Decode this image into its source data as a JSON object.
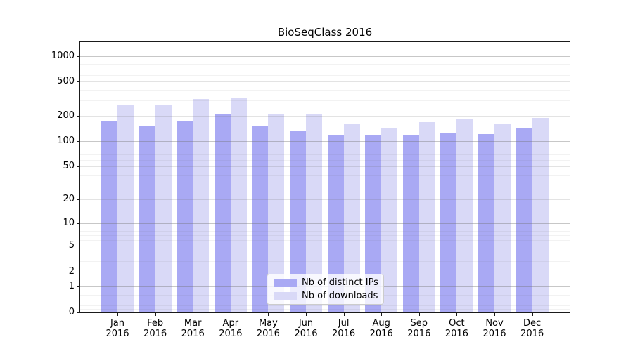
{
  "title": "BioSeqClass 2016",
  "legend": {
    "items": [
      {
        "label": "Nb of distinct IPs",
        "series_key": "ips"
      },
      {
        "label": "Nb of downloads",
        "series_key": "downloads"
      }
    ]
  },
  "colors": {
    "bar_ips": "#a9a9f4",
    "bar_downloads": "#d9d9f7",
    "axis_frame": "#1a1a1a",
    "grid_strong": "rgba(115,115,115,0.40)",
    "grid_medium": "rgba(115,115,115,0.20)",
    "grid_faint": "rgba(115,115,115,0.09)",
    "legend_bg": "rgba(255,255,255,0.8)",
    "legend_border": "#cccccc",
    "text": "#000000"
  },
  "y_axis": {
    "tick_values": [
      1000,
      500,
      200,
      100,
      50,
      20,
      10,
      5,
      2,
      1,
      0
    ],
    "tick_labels": [
      "1000",
      "500",
      "200",
      "100",
      "50",
      "20",
      "10",
      "5",
      "2",
      "1",
      "0"
    ]
  },
  "x_axis": {
    "months": [
      "Jan",
      "Feb",
      "Mar",
      "Apr",
      "May",
      "Jun",
      "Jul",
      "Aug",
      "Sep",
      "Oct",
      "Nov",
      "Dec"
    ],
    "year": "2016"
  },
  "chart_data": {
    "type": "bar",
    "title": "BioSeqClass 2016",
    "categories": [
      "Jan 2016",
      "Feb 2016",
      "Mar 2016",
      "Apr 2016",
      "May 2016",
      "Jun 2016",
      "Jul 2016",
      "Aug 2016",
      "Sep 2016",
      "Oct 2016",
      "Nov 2016",
      "Dec 2016"
    ],
    "series": [
      {
        "name": "Nb of distinct IPs",
        "values": [
          170,
          152,
          172,
          205,
          148,
          130,
          118,
          116,
          117,
          126,
          120,
          143
        ]
      },
      {
        "name": "Nb of downloads",
        "values": [
          265,
          265,
          313,
          325,
          210,
          207,
          160,
          142,
          166,
          180,
          160,
          186
        ]
      }
    ],
    "xlabel": "",
    "ylabel": "",
    "yscale": "log1p",
    "ylim": [
      0,
      1380
    ],
    "y_ticks": [
      0,
      1,
      2,
      5,
      10,
      20,
      50,
      100,
      200,
      500,
      1000
    ],
    "grid": "horizontal",
    "legend_position": "lower center"
  }
}
